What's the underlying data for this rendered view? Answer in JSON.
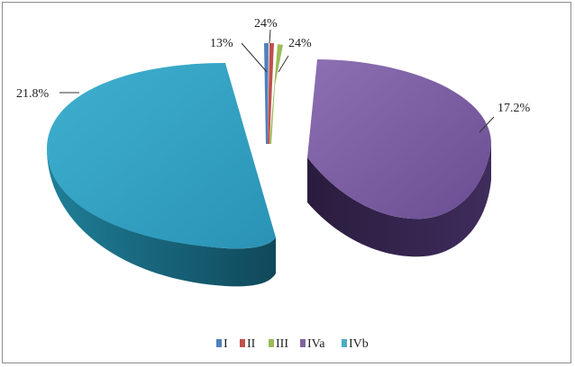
{
  "chart_data": {
    "type": "pie",
    "title": "",
    "legend_position": "bottom",
    "slices": [
      {
        "name": "I",
        "label": "24%",
        "color": "#4f81bd"
      },
      {
        "name": "II",
        "label": "13%",
        "color": "#c0504d"
      },
      {
        "name": "III",
        "label": "24%",
        "color": "#9bbb59"
      },
      {
        "name": "IVa",
        "label": "17.2%",
        "color": "#8064a2"
      },
      {
        "name": "IVb",
        "label": "21.8%",
        "color": "#4bacc6"
      }
    ]
  }
}
